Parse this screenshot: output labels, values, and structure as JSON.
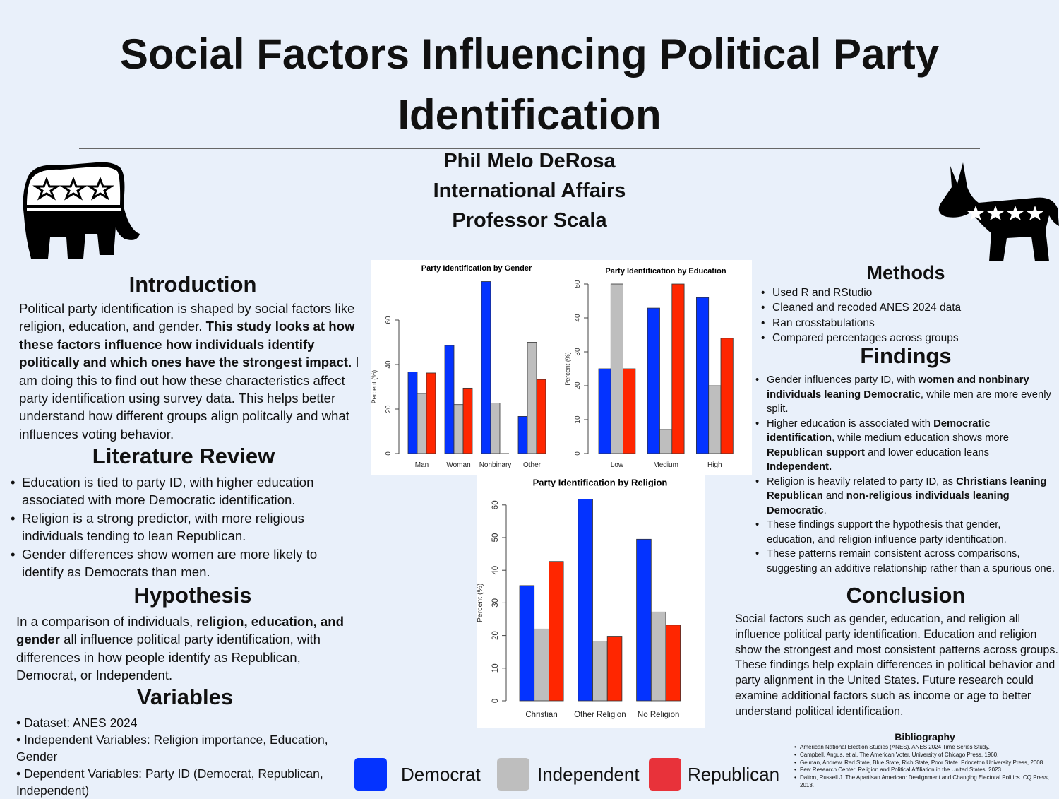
{
  "header": {
    "title_line1": "Social Factors Influencing Political Party",
    "title_line2": "Identification",
    "author": "Phil Melo DeRosa",
    "department": "International Affairs",
    "professor": "Professor Scala"
  },
  "introduction": {
    "heading": "Introduction",
    "text_a": "Political party identification is shaped by social factors like religion, education, and gender. ",
    "text_bold": "This study looks at how these factors influence how individuals identify politically and which ones have the strongest impact.",
    "text_b": " I am doing this to find out how these characteristics affect party identification using survey data. This helps better understand how different groups align politcally and what influences voting behavior."
  },
  "literature_review": {
    "heading": "Literature Review",
    "items": [
      "Education is tied to party ID, with higher education associated with more Democratic identification.",
      "Religion is a strong predictor, with more religious individuals tending to lean Republican.",
      "Gender differences show women are more likely to identify as Democrats than men."
    ]
  },
  "hypothesis": {
    "heading": "Hypothesis",
    "text_a": "In a comparison of individuals, ",
    "text_bold1": "religion, education, and gender",
    "text_b": " all influence political party identification, with differences in how people identify as Republican, Democrat, or Independent."
  },
  "variables": {
    "heading": "Variables",
    "items": [
      "• Dataset: ANES 2024",
      "• Independent Variables: Religion importance, Education, Gender",
      "• Dependent Variables: Party ID (Democrat, Republican, Independent)"
    ]
  },
  "methods": {
    "heading": "Methods",
    "items": [
      "Used R and RStudio",
      "Cleaned and recoded ANES 2024 data",
      "Ran crosstabulations",
      "Compared percentages across groups"
    ]
  },
  "findings": {
    "heading": "Findings",
    "items": [
      {
        "a": "Gender influences party ID, with ",
        "b": "women and nonbinary individuals leaning Democratic",
        "c": ", while men are more evenly split."
      },
      {
        "a": "Higher education is associated with ",
        "b": "Democratic identification",
        "c": ", while medium education shows more ",
        "d": "Republican support",
        "e": " and lower education leans ",
        "f": "Independent."
      },
      {
        "a": "Religion is heavily related to party ID, as ",
        "b": "Christians leaning Republican",
        "c": " and ",
        "d": "non-religious individuals leaning Democratic",
        "e": "."
      },
      {
        "a": "These findings support the hypothesis that gender, education, and religion influence party identification."
      },
      {
        "a": "These patterns remain consistent across comparisons, suggesting an additive relationship rather than a spurious one."
      }
    ]
  },
  "conclusion": {
    "heading": "Conclusion",
    "lines": [
      "Social factors such as gender, education, and religion all",
      "influence political party identification. Education and religion",
      "show the strongest and most consistent patterns across groups.",
      "These findings help explain differences in political behavior and",
      "party alignment in the United States. Future research could",
      "examine additional factors such as income or age to better",
      "understand political identification."
    ]
  },
  "bibliography": {
    "heading": "Bibliography",
    "items": [
      "American National Election Studies (ANES). ANES 2024 Time Series Study.",
      "Campbell, Angus, et al. The American Voter. University of Chicago Press, 1960.",
      "Gelman, Andrew. Red State, Blue State, Rich State, Poor State. Princeton University Press, 2008.",
      "Pew Research Center. Religion and Political Affiliation in the United States. 2023.",
      "Dalton, Russell J. The Apartisan American: Dealignment and Changing Electoral Politics. CQ Press, 2013."
    ]
  },
  "legend": {
    "items": [
      {
        "label": "Democrat",
        "color": "#0433ff"
      },
      {
        "label": "Independent",
        "color": "#bebebe"
      },
      {
        "label": "Republican",
        "color": "#e8323a"
      }
    ]
  },
  "icons": {
    "left": "republican-elephant-icon",
    "right": "democratic-donkey-icon"
  },
  "chart_data": [
    {
      "type": "bar",
      "title": "Party Identification by Gender",
      "ylabel": "Percent (%)",
      "xlabel": "",
      "categories": [
        "Man",
        "Woman",
        "Nonbinary",
        "Other"
      ],
      "ylim": [
        0,
        80
      ],
      "yticks": [
        0,
        20,
        40,
        60
      ],
      "grid": false,
      "colors": [
        "#0433ff",
        "#bebebe",
        "#ff2600"
      ],
      "series": [
        {
          "values": [
            36.7,
            48.6,
            77.3,
            16.7
          ]
        },
        {
          "values": [
            27.0,
            22.0,
            22.7,
            50.0
          ]
        },
        {
          "values": [
            36.2,
            29.4,
            0,
            33.3
          ]
        }
      ]
    },
    {
      "type": "bar",
      "title": "Party Identification by Education",
      "ylabel": "Percent (%)",
      "xlabel": "",
      "categories": [
        "Low",
        "Medium",
        "High"
      ],
      "ylim": [
        0,
        50
      ],
      "yticks": [
        0,
        10,
        20,
        30,
        40,
        50
      ],
      "grid": false,
      "colors": [
        "#0433ff",
        "#bebebe",
        "#ff2600"
      ],
      "series": [
        {
          "values": [
            25,
            42.9,
            46
          ]
        },
        {
          "values": [
            50,
            7.1,
            20
          ]
        },
        {
          "values": [
            25,
            50,
            34
          ]
        }
      ]
    },
    {
      "type": "bar",
      "title": "Party Identification by Religion",
      "ylabel": "Percent (%)",
      "xlabel": "",
      "categories": [
        "Christian",
        "Other Religion",
        "No Religion"
      ],
      "ylim": [
        0,
        62
      ],
      "yticks": [
        0,
        10,
        20,
        30,
        40,
        50,
        60
      ],
      "grid": false,
      "colors": [
        "#0433ff",
        "#bebebe",
        "#ff2600"
      ],
      "series": [
        {
          "values": [
            35.3,
            61.8,
            49.5
          ]
        },
        {
          "values": [
            22.0,
            18.3,
            27.2
          ]
        },
        {
          "values": [
            42.7,
            19.8,
            23.2
          ]
        }
      ]
    }
  ]
}
